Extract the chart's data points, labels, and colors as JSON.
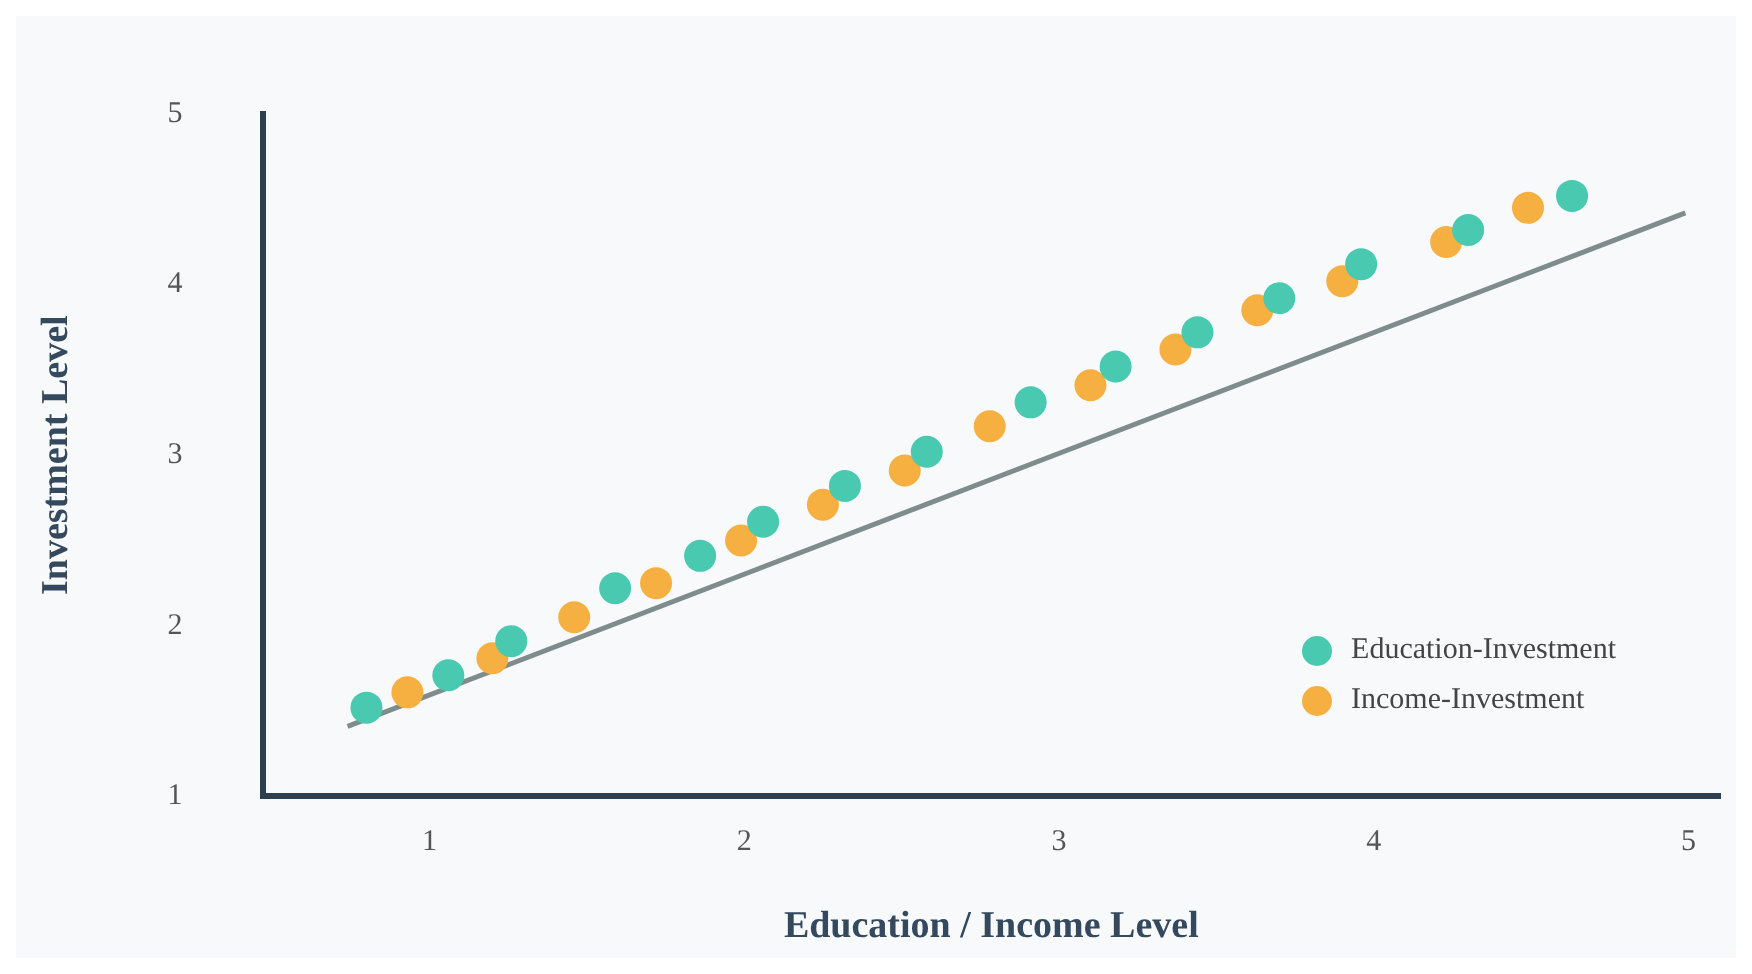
{
  "chart_data": {
    "type": "scatter",
    "xlabel": "Education / Income Level",
    "ylabel": "Investment Level",
    "xlim": [
      0.47,
      5.1
    ],
    "ylim": [
      1,
      5
    ],
    "xticks": [
      1,
      2,
      3,
      4,
      5
    ],
    "yticks": [
      1,
      2,
      3,
      4,
      5
    ],
    "grid": false,
    "legend": "bottom right",
    "marker": "circle",
    "series": [
      {
        "name": "Education-Investment",
        "color": "#48c9b0",
        "x": [
          0.8,
          1.06,
          1.26,
          1.59,
          1.86,
          2.06,
          2.32,
          2.58,
          2.91,
          3.18,
          3.44,
          3.7,
          3.96,
          4.3,
          4.63
        ],
        "values": [
          1.52,
          1.71,
          1.91,
          2.22,
          2.41,
          2.61,
          2.82,
          3.02,
          3.31,
          3.52,
          3.72,
          3.92,
          4.12,
          4.32,
          4.52
        ]
      },
      {
        "name": "Income-Investment",
        "color": "#f5b041",
        "x": [
          0.93,
          1.2,
          1.46,
          1.72,
          1.99,
          2.25,
          2.51,
          2.78,
          3.1,
          3.37,
          3.63,
          3.9,
          4.23,
          4.49
        ],
        "values": [
          1.61,
          1.81,
          2.05,
          2.25,
          2.5,
          2.71,
          2.91,
          3.17,
          3.41,
          3.62,
          3.85,
          4.02,
          4.25,
          4.45
        ]
      },
      {
        "type": "line",
        "color": "#7f8c8d",
        "x": [
          0.74,
          4.99
        ],
        "values": [
          1.41,
          4.42
        ],
        "marker": "none"
      }
    ]
  }
}
